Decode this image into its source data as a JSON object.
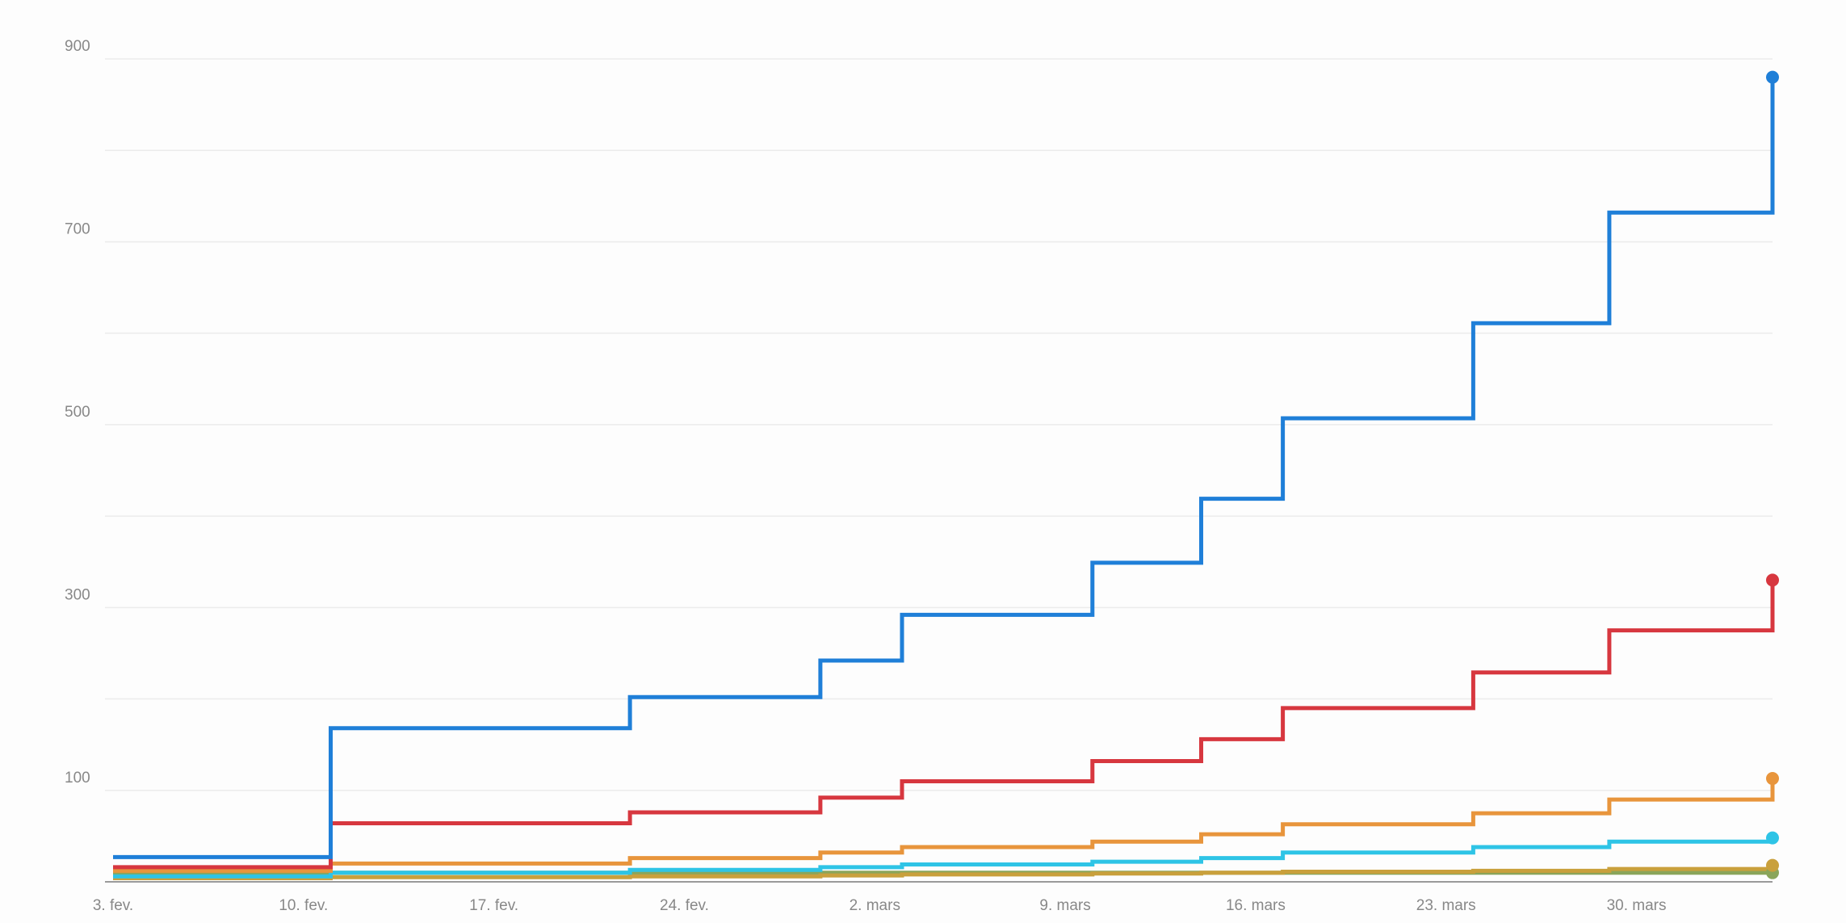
{
  "chart_data": {
    "type": "line",
    "step": true,
    "title": "",
    "xlabel": "",
    "ylabel": "",
    "x_axis": {
      "type": "date",
      "range": [
        "2020-02-03",
        "2020-04-04"
      ],
      "tick_dates": [
        "2020-02-03",
        "2020-02-10",
        "2020-02-17",
        "2020-02-24",
        "2020-03-02",
        "2020-03-09",
        "2020-03-16",
        "2020-03-23",
        "2020-03-30"
      ],
      "tick_labels": [
        "3. fev.",
        "10. fev.",
        "17. fev.",
        "24. fev.",
        "2. mars",
        "9. mars",
        "16. mars",
        "23. mars",
        "30. mars"
      ]
    },
    "y_axis": {
      "range": [
        0,
        900
      ],
      "labeled_ticks": [
        100,
        300,
        500,
        700,
        900
      ],
      "tick_labels": [
        "100",
        "300",
        "500",
        "700",
        "900"
      ],
      "gridlines": [
        100,
        200,
        300,
        400,
        500,
        600,
        700,
        800,
        900
      ]
    },
    "grid": true,
    "legend": "none",
    "end_markers": true,
    "series": [
      {
        "color": "#1f7fd8",
        "x": [
          "2020-02-03",
          "2020-02-11",
          "2020-02-22",
          "2020-02-29",
          "2020-03-03",
          "2020-03-10",
          "2020-03-14",
          "2020-03-17",
          "2020-03-24",
          "2020-03-29",
          "2020-04-04"
        ],
        "y": [
          27,
          168,
          202,
          242,
          292,
          349,
          419,
          507,
          611,
          732,
          880
        ]
      },
      {
        "color": "#d7373f",
        "x": [
          "2020-02-03",
          "2020-02-11",
          "2020-02-22",
          "2020-02-29",
          "2020-03-03",
          "2020-03-10",
          "2020-03-14",
          "2020-03-17",
          "2020-03-24",
          "2020-03-29",
          "2020-04-04"
        ],
        "y": [
          16,
          64,
          76,
          92,
          110,
          132,
          156,
          190,
          229,
          275,
          330
        ]
      },
      {
        "color": "#e8953c",
        "x": [
          "2020-02-03",
          "2020-02-11",
          "2020-02-22",
          "2020-02-29",
          "2020-03-03",
          "2020-03-10",
          "2020-03-14",
          "2020-03-17",
          "2020-03-24",
          "2020-03-29",
          "2020-04-04"
        ],
        "y": [
          12,
          20,
          26,
          32,
          38,
          44,
          52,
          63,
          75,
          90,
          113
        ]
      },
      {
        "color": "#2ec4e6",
        "x": [
          "2020-02-03",
          "2020-02-11",
          "2020-02-22",
          "2020-02-29",
          "2020-03-03",
          "2020-03-10",
          "2020-03-14",
          "2020-03-17",
          "2020-03-24",
          "2020-03-29",
          "2020-04-04"
        ],
        "y": [
          6,
          10,
          13,
          16,
          19,
          22,
          26,
          32,
          38,
          44,
          48
        ]
      },
      {
        "color": "#c9a03c",
        "x": [
          "2020-02-03",
          "2020-02-11",
          "2020-02-22",
          "2020-02-29",
          "2020-03-03",
          "2020-03-10",
          "2020-03-14",
          "2020-03-17",
          "2020-03-24",
          "2020-03-29",
          "2020-04-04"
        ],
        "y": [
          4,
          5,
          6,
          7,
          8,
          9,
          10,
          11,
          12,
          14,
          18
        ]
      },
      {
        "color": "#8aa55a",
        "x": [
          "2020-02-03",
          "2020-02-11",
          "2020-02-22",
          "2020-02-29",
          "2020-03-03",
          "2020-03-10",
          "2020-03-14",
          "2020-03-17",
          "2020-03-24",
          "2020-03-29",
          "2020-04-04"
        ],
        "y": [
          10,
          10,
          10,
          10,
          10,
          10,
          10,
          10,
          10,
          10,
          10
        ]
      }
    ]
  }
}
